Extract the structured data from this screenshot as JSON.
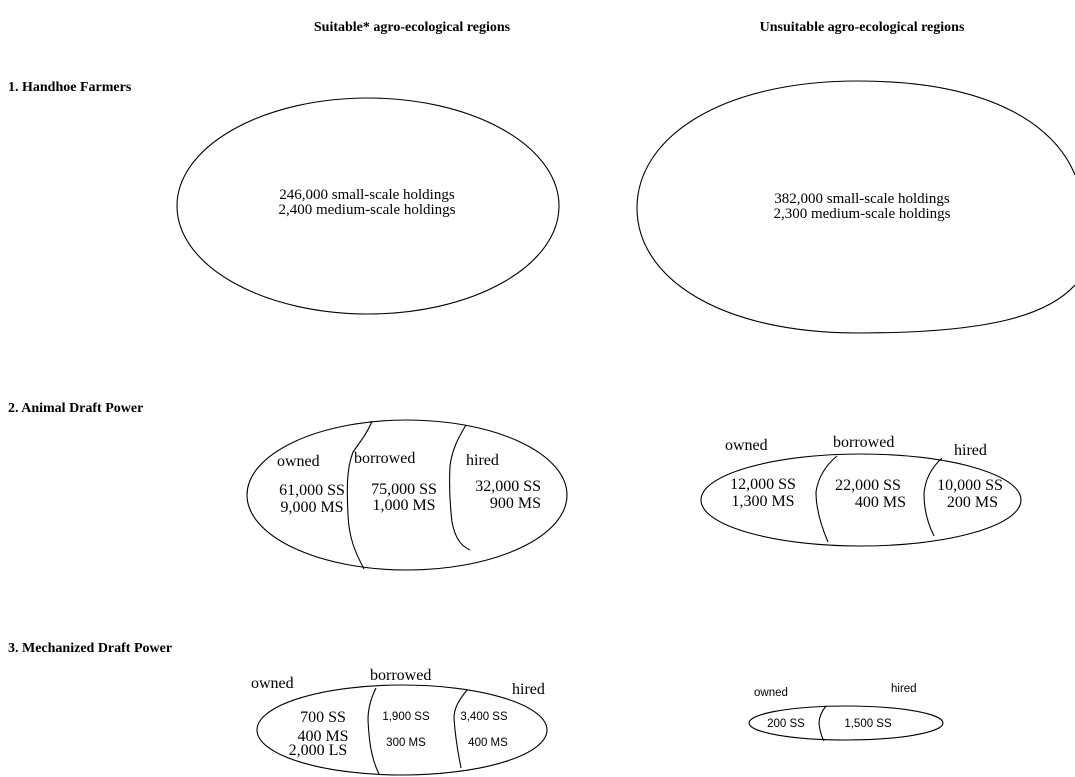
{
  "headers": {
    "suitable": "Suitable* agro-ecological regions",
    "unsuitable": "Unsuitable agro-ecological regions"
  },
  "sections": {
    "handhoe": {
      "title": "1. Handhoe Farmers",
      "suitable": {
        "line1": "246,000 small-scale holdings",
        "line2": "2,400 medium-scale holdings"
      },
      "unsuitable": {
        "line1": "382,000 small-scale holdings",
        "line2": "2,300 medium-scale holdings"
      }
    },
    "animal": {
      "title": "2. Animal Draft Power",
      "suitable": {
        "owned": {
          "label": "owned",
          "line1": "61,000 SS",
          "line2": "9,000 MS"
        },
        "borrowed": {
          "label": "borrowed",
          "line1": "75,000 SS",
          "line2": "1,000 MS"
        },
        "hired": {
          "label": "hired",
          "line1": "32,000 SS",
          "line2": "900 MS"
        }
      },
      "unsuitable": {
        "owned": {
          "label": "owned",
          "line1": "12,000 SS",
          "line2": "1,300 MS"
        },
        "borrowed": {
          "label": "borrowed",
          "line1": "22,000 SS",
          "line2": "400 MS"
        },
        "hired": {
          "label": "hired",
          "line1": "10,000 SS",
          "line2": "200 MS"
        }
      }
    },
    "mechanized": {
      "title": "3. Mechanized Draft Power",
      "suitable": {
        "owned": {
          "label": "owned",
          "line1": "700 SS",
          "line2": "400 MS",
          "line3": "2,000 LS"
        },
        "borrowed": {
          "label": "borrowed",
          "line1": "1,900 SS",
          "line2": "300 MS"
        },
        "hired": {
          "label": "hired",
          "line1": "3,400 SS",
          "line2": "400 MS"
        }
      },
      "unsuitable": {
        "owned": {
          "label": "owned",
          "line1": "200 SS"
        },
        "hired": {
          "label": "hired",
          "line1": "1,500 SS"
        }
      }
    }
  }
}
